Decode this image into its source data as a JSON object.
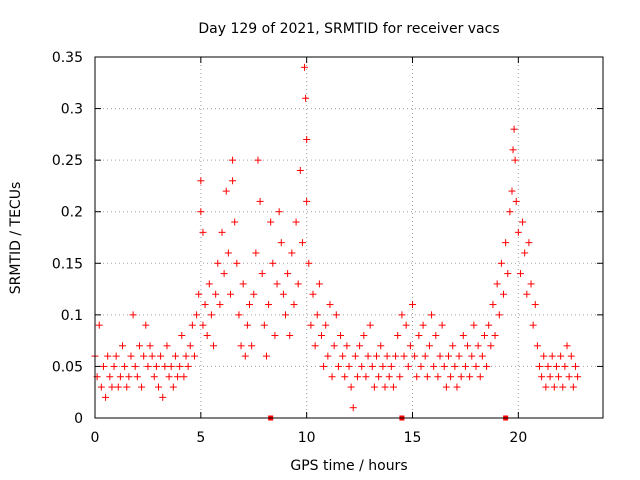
{
  "chart_data": {
    "type": "scatter",
    "title": "Day 129 of 2021, SRMTID for receiver vacs",
    "xlabel": "GPS time / hours",
    "ylabel": "SRMTID / TECUs",
    "xlim": [
      0,
      24
    ],
    "ylim": [
      0,
      0.35
    ],
    "xticks": [
      0,
      5,
      10,
      15,
      20
    ],
    "yticks": [
      0,
      0.05,
      0.1,
      0.15,
      0.2,
      0.25,
      0.3,
      0.35
    ],
    "xtick_labels": [
      "0",
      "5",
      "10",
      "15",
      "20"
    ],
    "ytick_labels": [
      "0",
      "0.05",
      "0.1",
      "0.15",
      "0.2",
      "0.25",
      "0.3",
      "0.35"
    ],
    "grid": true,
    "marker": "+",
    "color": "#ff0000",
    "baseline_markers_x": [
      8.3,
      14.5,
      19.4
    ],
    "series": [
      {
        "name": "SRMTID",
        "points": [
          [
            0.0,
            0.06
          ],
          [
            0.1,
            0.04
          ],
          [
            0.2,
            0.09
          ],
          [
            0.3,
            0.03
          ],
          [
            0.4,
            0.05
          ],
          [
            0.5,
            0.02
          ],
          [
            0.6,
            0.06
          ],
          [
            0.7,
            0.04
          ],
          [
            0.8,
            0.03
          ],
          [
            0.9,
            0.05
          ],
          [
            1.0,
            0.06
          ],
          [
            1.1,
            0.03
          ],
          [
            1.2,
            0.04
          ],
          [
            1.3,
            0.07
          ],
          [
            1.4,
            0.05
          ],
          [
            1.5,
            0.03
          ],
          [
            1.6,
            0.04
          ],
          [
            1.7,
            0.06
          ],
          [
            1.8,
            0.1
          ],
          [
            1.9,
            0.05
          ],
          [
            2.0,
            0.04
          ],
          [
            2.1,
            0.07
          ],
          [
            2.2,
            0.03
          ],
          [
            2.3,
            0.06
          ],
          [
            2.4,
            0.09
          ],
          [
            2.5,
            0.05
          ],
          [
            2.6,
            0.07
          ],
          [
            2.7,
            0.06
          ],
          [
            2.8,
            0.04
          ],
          [
            2.9,
            0.05
          ],
          [
            3.0,
            0.03
          ],
          [
            3.1,
            0.06
          ],
          [
            3.2,
            0.02
          ],
          [
            3.3,
            0.05
          ],
          [
            3.4,
            0.07
          ],
          [
            3.5,
            0.04
          ],
          [
            3.6,
            0.05
          ],
          [
            3.7,
            0.03
          ],
          [
            3.8,
            0.06
          ],
          [
            3.9,
            0.04
          ],
          [
            4.0,
            0.05
          ],
          [
            4.1,
            0.08
          ],
          [
            4.2,
            0.04
          ],
          [
            4.3,
            0.06
          ],
          [
            4.4,
            0.05
          ],
          [
            4.5,
            0.07
          ],
          [
            4.6,
            0.09
          ],
          [
            4.7,
            0.06
          ],
          [
            4.8,
            0.1
          ],
          [
            4.9,
            0.12
          ],
          [
            5.0,
            0.23
          ],
          [
            5.0,
            0.2
          ],
          [
            5.1,
            0.18
          ],
          [
            5.1,
            0.09
          ],
          [
            5.2,
            0.11
          ],
          [
            5.3,
            0.08
          ],
          [
            5.4,
            0.13
          ],
          [
            5.5,
            0.1
          ],
          [
            5.6,
            0.07
          ],
          [
            5.7,
            0.12
          ],
          [
            5.8,
            0.15
          ],
          [
            5.9,
            0.11
          ],
          [
            6.0,
            0.18
          ],
          [
            6.1,
            0.14
          ],
          [
            6.2,
            0.22
          ],
          [
            6.3,
            0.16
          ],
          [
            6.4,
            0.12
          ],
          [
            6.5,
            0.25
          ],
          [
            6.5,
            0.23
          ],
          [
            6.6,
            0.19
          ],
          [
            6.7,
            0.15
          ],
          [
            6.8,
            0.1
          ],
          [
            6.9,
            0.07
          ],
          [
            7.0,
            0.13
          ],
          [
            7.1,
            0.06
          ],
          [
            7.2,
            0.09
          ],
          [
            7.3,
            0.11
          ],
          [
            7.4,
            0.07
          ],
          [
            7.5,
            0.12
          ],
          [
            7.6,
            0.16
          ],
          [
            7.7,
            0.25
          ],
          [
            7.8,
            0.21
          ],
          [
            7.9,
            0.14
          ],
          [
            8.0,
            0.09
          ],
          [
            8.1,
            0.06
          ],
          [
            8.2,
            0.11
          ],
          [
            8.3,
            0.19
          ],
          [
            8.4,
            0.15
          ],
          [
            8.5,
            0.08
          ],
          [
            8.6,
            0.13
          ],
          [
            8.7,
            0.2
          ],
          [
            8.8,
            0.17
          ],
          [
            8.9,
            0.12
          ],
          [
            9.0,
            0.1
          ],
          [
            9.1,
            0.14
          ],
          [
            9.2,
            0.08
          ],
          [
            9.3,
            0.16
          ],
          [
            9.4,
            0.11
          ],
          [
            9.5,
            0.19
          ],
          [
            9.6,
            0.13
          ],
          [
            9.7,
            0.24
          ],
          [
            9.8,
            0.17
          ],
          [
            9.9,
            0.34
          ],
          [
            9.95,
            0.31
          ],
          [
            10.0,
            0.27
          ],
          [
            10.0,
            0.21
          ],
          [
            10.1,
            0.15
          ],
          [
            10.2,
            0.09
          ],
          [
            10.3,
            0.12
          ],
          [
            10.4,
            0.07
          ],
          [
            10.5,
            0.1
          ],
          [
            10.6,
            0.13
          ],
          [
            10.7,
            0.08
          ],
          [
            10.8,
            0.05
          ],
          [
            10.9,
            0.09
          ],
          [
            11.0,
            0.06
          ],
          [
            11.1,
            0.11
          ],
          [
            11.2,
            0.04
          ],
          [
            11.3,
            0.07
          ],
          [
            11.4,
            0.1
          ],
          [
            11.5,
            0.05
          ],
          [
            11.6,
            0.08
          ],
          [
            11.7,
            0.06
          ],
          [
            11.8,
            0.04
          ],
          [
            11.9,
            0.07
          ],
          [
            12.0,
            0.05
          ],
          [
            12.1,
            0.03
          ],
          [
            12.2,
            0.01
          ],
          [
            12.3,
            0.06
          ],
          [
            12.4,
            0.04
          ],
          [
            12.5,
            0.07
          ],
          [
            12.6,
            0.05
          ],
          [
            12.7,
            0.08
          ],
          [
            12.8,
            0.04
          ],
          [
            12.9,
            0.06
          ],
          [
            13.0,
            0.09
          ],
          [
            13.1,
            0.05
          ],
          [
            13.2,
            0.03
          ],
          [
            13.3,
            0.06
          ],
          [
            13.4,
            0.04
          ],
          [
            13.5,
            0.07
          ],
          [
            13.6,
            0.05
          ],
          [
            13.7,
            0.03
          ],
          [
            13.8,
            0.06
          ],
          [
            13.9,
            0.04
          ],
          [
            14.0,
            0.05
          ],
          [
            14.1,
            0.03
          ],
          [
            14.2,
            0.06
          ],
          [
            14.3,
            0.08
          ],
          [
            14.4,
            0.04
          ],
          [
            14.5,
            0.1
          ],
          [
            14.6,
            0.06
          ],
          [
            14.7,
            0.09
          ],
          [
            14.8,
            0.05
          ],
          [
            14.9,
            0.07
          ],
          [
            15.0,
            0.11
          ],
          [
            15.1,
            0.06
          ],
          [
            15.2,
            0.04
          ],
          [
            15.3,
            0.08
          ],
          [
            15.4,
            0.05
          ],
          [
            15.5,
            0.09
          ],
          [
            15.6,
            0.06
          ],
          [
            15.7,
            0.04
          ],
          [
            15.8,
            0.07
          ],
          [
            15.9,
            0.1
          ],
          [
            16.0,
            0.05
          ],
          [
            16.1,
            0.08
          ],
          [
            16.2,
            0.04
          ],
          [
            16.3,
            0.06
          ],
          [
            16.4,
            0.09
          ],
          [
            16.5,
            0.05
          ],
          [
            16.6,
            0.03
          ],
          [
            16.7,
            0.06
          ],
          [
            16.8,
            0.04
          ],
          [
            16.9,
            0.07
          ],
          [
            17.0,
            0.05
          ],
          [
            17.1,
            0.03
          ],
          [
            17.2,
            0.06
          ],
          [
            17.3,
            0.04
          ],
          [
            17.4,
            0.08
          ],
          [
            17.5,
            0.05
          ],
          [
            17.6,
            0.07
          ],
          [
            17.7,
            0.04
          ],
          [
            17.8,
            0.06
          ],
          [
            17.9,
            0.09
          ],
          [
            18.0,
            0.05
          ],
          [
            18.1,
            0.07
          ],
          [
            18.2,
            0.04
          ],
          [
            18.3,
            0.06
          ],
          [
            18.4,
            0.08
          ],
          [
            18.5,
            0.05
          ],
          [
            18.6,
            0.09
          ],
          [
            18.7,
            0.07
          ],
          [
            18.8,
            0.11
          ],
          [
            18.9,
            0.08
          ],
          [
            19.0,
            0.13
          ],
          [
            19.1,
            0.1
          ],
          [
            19.2,
            0.15
          ],
          [
            19.3,
            0.12
          ],
          [
            19.4,
            0.17
          ],
          [
            19.5,
            0.14
          ],
          [
            19.6,
            0.2
          ],
          [
            19.7,
            0.22
          ],
          [
            19.75,
            0.26
          ],
          [
            19.8,
            0.28
          ],
          [
            19.85,
            0.25
          ],
          [
            19.9,
            0.21
          ],
          [
            20.0,
            0.18
          ],
          [
            20.1,
            0.14
          ],
          [
            20.2,
            0.19
          ],
          [
            20.3,
            0.16
          ],
          [
            20.4,
            0.12
          ],
          [
            20.5,
            0.17
          ],
          [
            20.6,
            0.13
          ],
          [
            20.7,
            0.09
          ],
          [
            20.8,
            0.11
          ],
          [
            20.9,
            0.07
          ],
          [
            21.0,
            0.05
          ],
          [
            21.1,
            0.04
          ],
          [
            21.2,
            0.06
          ],
          [
            21.3,
            0.03
          ],
          [
            21.4,
            0.05
          ],
          [
            21.5,
            0.04
          ],
          [
            21.6,
            0.06
          ],
          [
            21.7,
            0.03
          ],
          [
            21.8,
            0.05
          ],
          [
            21.9,
            0.04
          ],
          [
            22.0,
            0.06
          ],
          [
            22.1,
            0.03
          ],
          [
            22.2,
            0.05
          ],
          [
            22.3,
            0.07
          ],
          [
            22.4,
            0.04
          ],
          [
            22.5,
            0.06
          ],
          [
            22.6,
            0.03
          ],
          [
            22.7,
            0.05
          ],
          [
            22.8,
            0.04
          ]
        ]
      }
    ]
  }
}
